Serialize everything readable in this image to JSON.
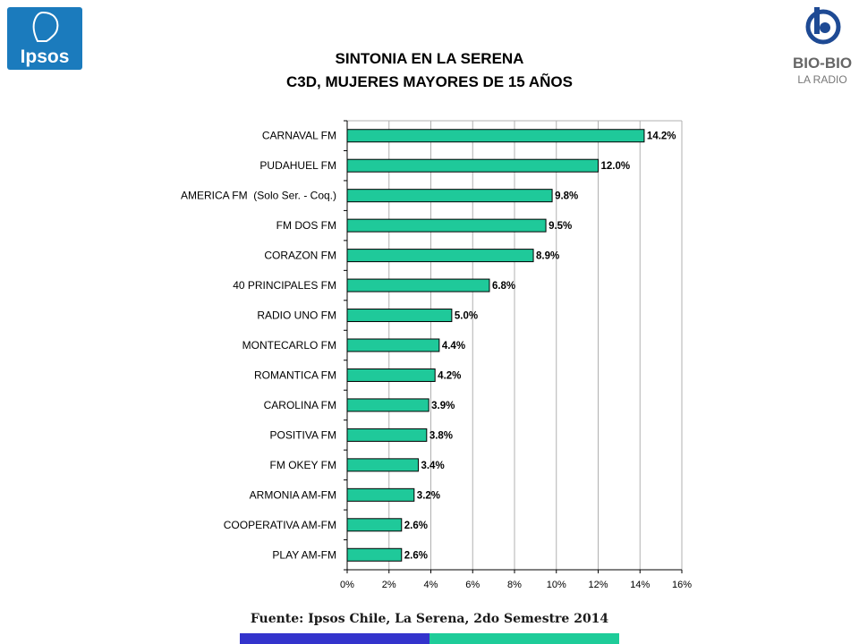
{
  "brand": {
    "ipsos_logo_text": "Ipsos",
    "ipsos_color": "#1b7bbd",
    "biobio_logo_text": "BIO-BIO",
    "biobio_subtext": "LA RADIO",
    "biobio_color": "#1e4a94"
  },
  "title_line1": "SINTONIA EN LA SERENA",
  "title_line2": "C3D, MUJERES MAYORES DE 15 AÑOS",
  "source": "Fuente: Ipsos Chile, La Serena, 2do Semestre 2014",
  "colors": {
    "bar": "#1fc99a",
    "footer_left": "#3333cc",
    "footer_right": "#1ecc99"
  },
  "chart_data": {
    "type": "bar",
    "orientation": "horizontal",
    "categories": [
      "CARNAVAL FM",
      "PUDAHUEL FM",
      "AMERICA FM  (Solo Ser. - Coq.)",
      "FM DOS FM",
      "CORAZON FM",
      "40 PRINCIPALES FM",
      "RADIO UNO FM",
      "MONTECARLO FM",
      "ROMANTICA FM",
      "CAROLINA FM",
      "POSITIVA FM",
      "FM OKEY FM",
      "ARMONIA AM-FM",
      "COOPERATIVA AM-FM",
      "PLAY AM-FM"
    ],
    "values": [
      14.2,
      12.0,
      9.8,
      9.5,
      8.9,
      6.8,
      5.0,
      4.4,
      4.2,
      3.9,
      3.8,
      3.4,
      3.2,
      2.6,
      2.6
    ],
    "labels": [
      "14.2%",
      "12.0%",
      "9.8%",
      "9.5%",
      "8.9%",
      "6.8%",
      "5.0%",
      "4.4%",
      "4.2%",
      "3.9%",
      "3.8%",
      "3.4%",
      "3.2%",
      "2.6%",
      "2.6%"
    ],
    "xlim": [
      0,
      16
    ],
    "xticks": [
      "0%",
      "2%",
      "4%",
      "6%",
      "8%",
      "10%",
      "12%",
      "14%",
      "16%"
    ],
    "grid": "vertical"
  }
}
